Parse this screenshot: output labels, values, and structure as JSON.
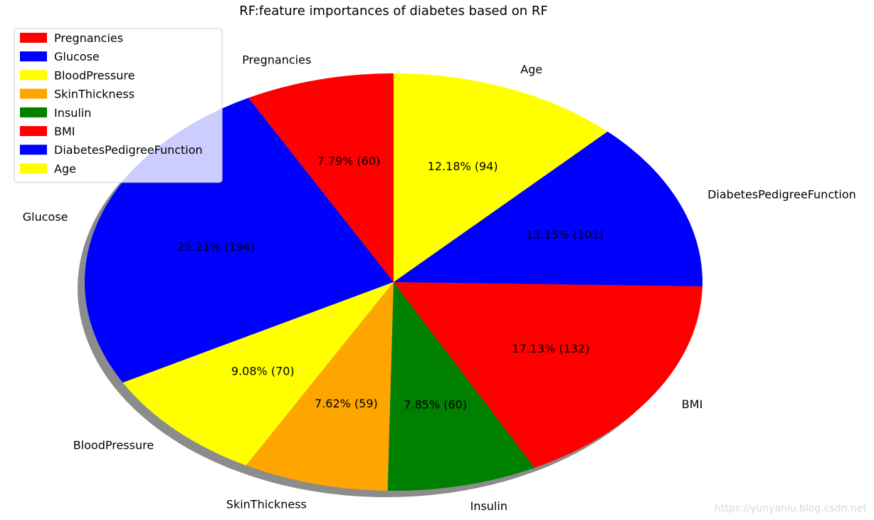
{
  "chart_data": {
    "type": "pie",
    "title": "RF:feature importances of diabetes based on RF",
    "categories": [
      "Pregnancies",
      "Glucose",
      "BloodPressure",
      "SkinThickness",
      "Insulin",
      "BMI",
      "DiabetesPedigreeFunction",
      "Age"
    ],
    "values": [
      7.79,
      25.21,
      9.08,
      7.62,
      7.85,
      17.13,
      13.15,
      12.18
    ],
    "counts": [
      60,
      194,
      70,
      59,
      60,
      132,
      101,
      94
    ],
    "pct_labels": [
      "7.79%  (60)",
      "25.21%  (194)",
      "9.08%  (70)",
      "7.62%  (59)",
      "7.85%  (60)",
      "17.13%  (132)",
      "13.15%  (101)",
      "12.18%  (94)"
    ],
    "colors": [
      "#ff0000",
      "#0000ff",
      "#ffff00",
      "#ffa500",
      "#008000",
      "#ff0000",
      "#0000ff",
      "#ffff00"
    ],
    "start_angle_deg": 90,
    "direction": "counterclockwise",
    "shadow": true,
    "legend_position": "upper-left"
  },
  "watermark": "https://yunyaniu.blog.csdn.net"
}
